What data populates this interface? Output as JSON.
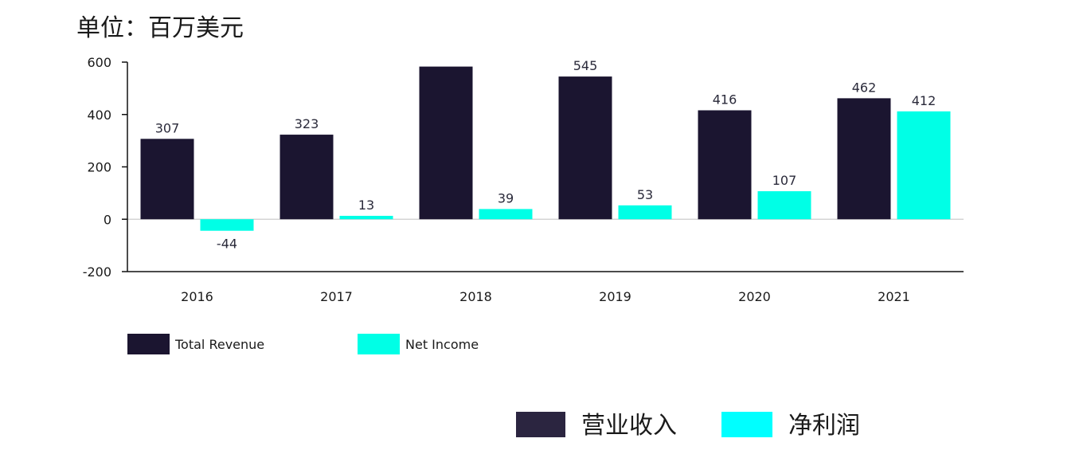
{
  "unit_label": "单位：百万美元",
  "colors": {
    "revenue": "#1b1530",
    "net_income": "#00ffe6",
    "legend2_revenue": "#2b2540",
    "legend2_net_income": "#00ffff",
    "axis": "#111111",
    "zero_line": "#cccccc"
  },
  "chart_data": {
    "type": "bar",
    "categories": [
      "2016",
      "2017",
      "2018",
      "2019",
      "2020",
      "2021"
    ],
    "series": [
      {
        "name": "Total Revenue",
        "values": [
          307,
          323,
          583,
          545,
          416,
          462
        ],
        "labels": [
          "307",
          "323",
          "",
          "545",
          "416",
          "462"
        ]
      },
      {
        "name": "Net Income",
        "values": [
          -44,
          13,
          39,
          53,
          107,
          412
        ],
        "labels": [
          "-44",
          "13",
          "39",
          "53",
          "107",
          "412"
        ]
      }
    ],
    "ylim": [
      -200,
      600
    ],
    "yticks": [
      "-200",
      "0",
      "200",
      "400",
      "600"
    ],
    "ytick_values": [
      -200,
      0,
      200,
      400,
      600
    ],
    "grid": false,
    "legend": "bottom-left"
  },
  "legend2": {
    "items": [
      {
        "label": "营业收入"
      },
      {
        "label": "净利润"
      }
    ]
  }
}
